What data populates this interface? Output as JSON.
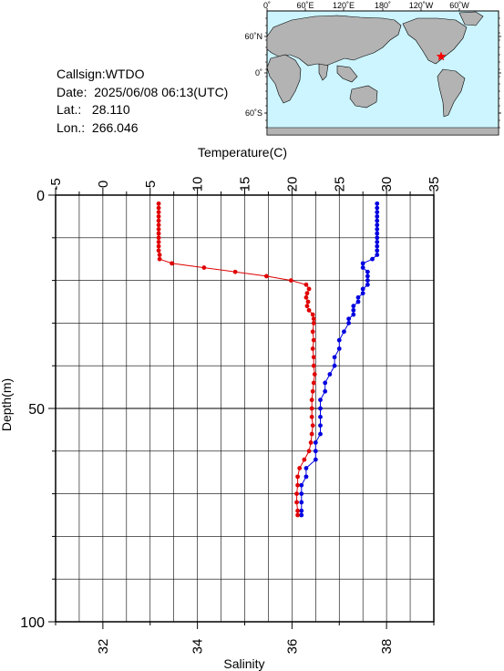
{
  "station": {
    "callsign_label": "Callsign:",
    "callsign": "WTDO",
    "date_label": "Date:",
    "date": "2025/06/08 06:13(UTC)",
    "lat_label": "Lat.:",
    "lat": "28.110",
    "lon_label": "Lon.:",
    "lon": "266.046"
  },
  "map": {
    "lon_ticks": [
      "0˚",
      "60˚E",
      "120˚E",
      "180˚",
      "120˚W",
      "60˚W"
    ],
    "lat_ticks": [
      "60˚N",
      "0˚",
      "60˚S"
    ],
    "ocean_color": "#ccf5ff",
    "land_color": "#b3b3b3",
    "marker_color": "#ff0000",
    "marker": "star-icon"
  },
  "chart_data": {
    "type": "line",
    "top_axis": {
      "label": "Temperature(C)",
      "range": [
        -5,
        35
      ],
      "ticks": [
        "-5",
        "0",
        "5",
        "10",
        "15",
        "20",
        "25",
        "30",
        "35"
      ]
    },
    "bottom_axis": {
      "label": "Salinity",
      "range": [
        31,
        39
      ],
      "ticks": [
        "32",
        "34",
        "36",
        "38"
      ]
    },
    "y_axis": {
      "label": "Depth(m)",
      "range": [
        0,
        100
      ],
      "ticks": [
        "0",
        "50",
        "100"
      ],
      "inverted": true
    },
    "grid": true,
    "series": [
      {
        "quantity": "temperature",
        "axis": "top",
        "color": "#e00000",
        "depth": [
          2,
          3,
          4,
          5,
          6,
          7,
          8,
          9,
          10,
          11,
          12,
          13,
          14,
          15,
          16,
          17,
          18,
          19,
          20,
          21,
          22,
          23,
          24,
          25,
          26,
          27,
          28,
          29,
          30,
          32,
          34,
          36,
          38,
          40,
          42,
          44,
          46,
          48,
          50,
          52,
          54,
          56,
          58,
          60,
          62,
          64,
          66,
          68,
          70,
          72,
          74,
          75
        ],
        "values": [
          5.9,
          5.9,
          5.9,
          5.9,
          5.9,
          5.9,
          5.9,
          5.9,
          5.9,
          5.9,
          5.9,
          5.9,
          6.0,
          6.0,
          7.3,
          10.7,
          14.0,
          17.3,
          19.9,
          21.5,
          21.8,
          21.6,
          21.5,
          21.7,
          21.6,
          21.8,
          22.2,
          22.3,
          22.3,
          22.2,
          22.3,
          22.2,
          22.3,
          22.3,
          22.4,
          22.3,
          22.2,
          22.1,
          22.1,
          22.1,
          22.2,
          22.1,
          22.0,
          21.8,
          21.3,
          20.8,
          20.6,
          20.6,
          20.5,
          20.5,
          20.6,
          20.6
        ]
      },
      {
        "quantity": "salinity",
        "axis": "bottom",
        "color": "#0000e0",
        "depth": [
          2,
          3,
          4,
          5,
          6,
          7,
          8,
          9,
          10,
          11,
          12,
          13,
          14,
          15,
          16,
          17,
          18,
          19,
          20,
          21,
          22,
          23,
          24,
          25,
          26,
          27,
          28,
          29,
          30,
          32,
          34,
          36,
          38,
          40,
          42,
          44,
          46,
          48,
          50,
          52,
          54,
          56,
          58,
          60,
          62,
          64,
          66,
          68,
          70,
          72,
          74,
          75
        ],
        "values": [
          37.8,
          37.8,
          37.8,
          37.8,
          37.8,
          37.8,
          37.8,
          37.8,
          37.8,
          37.8,
          37.8,
          37.8,
          37.8,
          37.7,
          37.5,
          37.5,
          37.6,
          37.6,
          37.6,
          37.6,
          37.5,
          37.5,
          37.4,
          37.4,
          37.3,
          37.3,
          37.3,
          37.2,
          37.2,
          37.1,
          37.0,
          37.0,
          36.9,
          36.9,
          36.8,
          36.7,
          36.7,
          36.6,
          36.6,
          36.6,
          36.6,
          36.6,
          36.5,
          36.5,
          36.5,
          36.3,
          36.3,
          36.2,
          36.2,
          36.2,
          36.2,
          36.2
        ]
      }
    ]
  }
}
